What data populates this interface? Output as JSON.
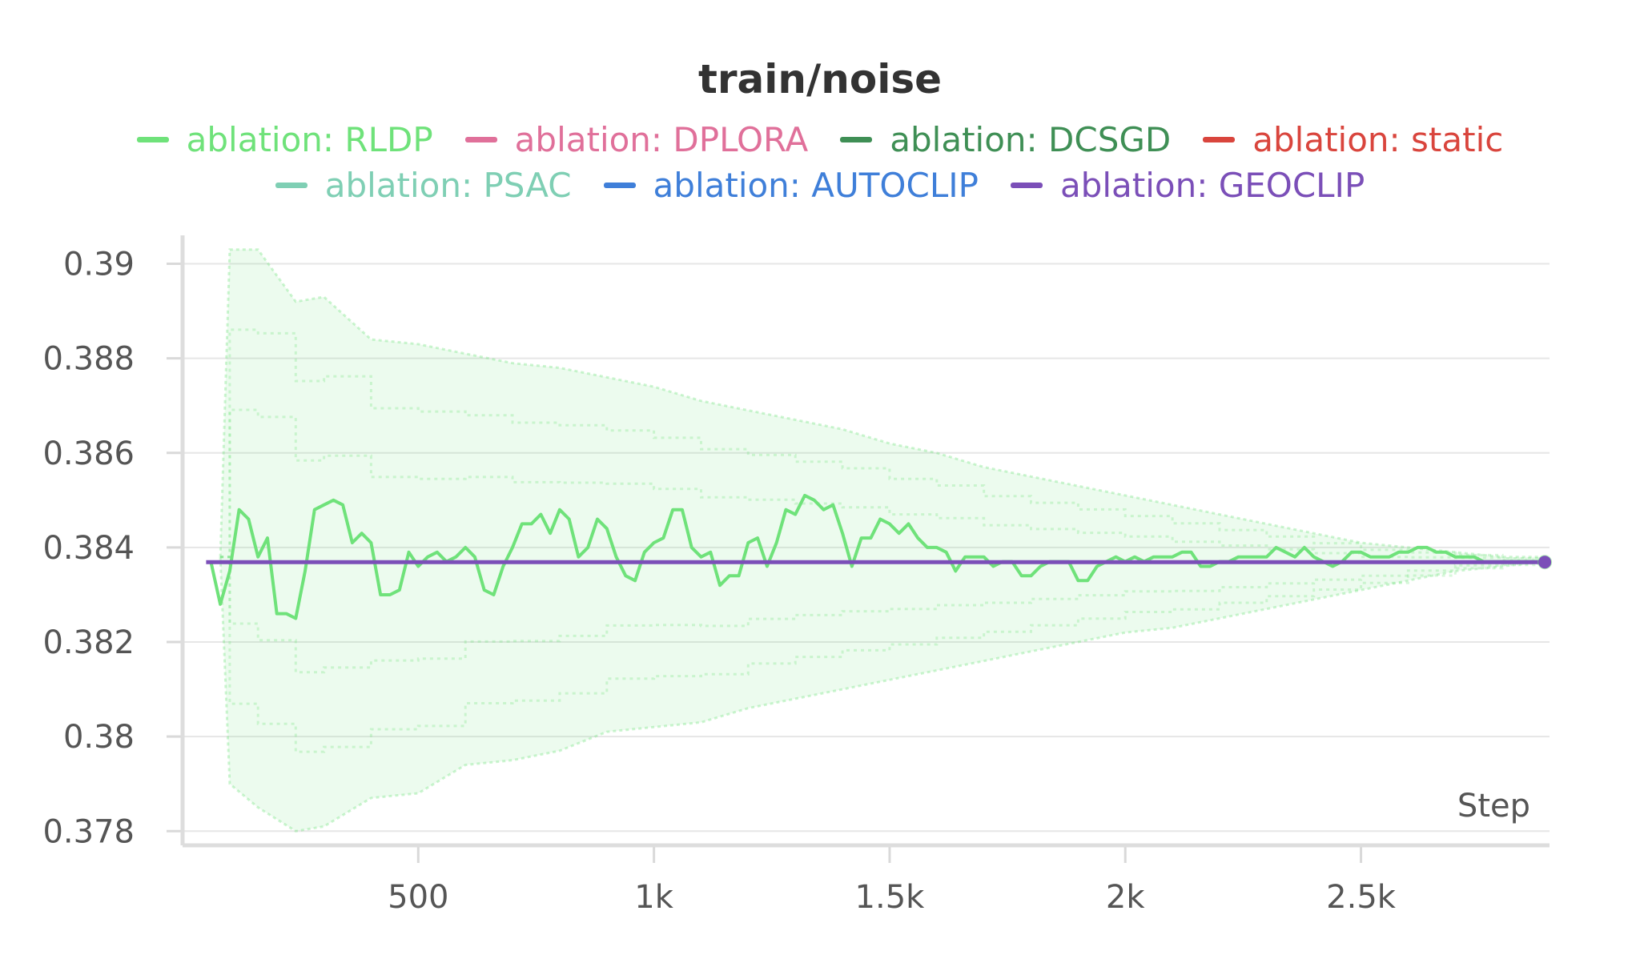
{
  "chart_data": {
    "type": "line",
    "title": "train/noise",
    "xlabel": "Step",
    "ylabel": "",
    "xlim": [
      0,
      2900
    ],
    "ylim": [
      0.3777,
      0.3905
    ],
    "x_ticks": [
      500,
      1000,
      1500,
      2000,
      2500
    ],
    "x_tick_labels": [
      "500",
      "1k",
      "1.5k",
      "2k",
      "2.5k"
    ],
    "y_ticks": [
      0.378,
      0.38,
      0.382,
      0.384,
      0.386,
      0.388,
      0.39
    ],
    "y_tick_labels": [
      "0.378",
      "0.38",
      "0.382",
      "0.384",
      "0.386",
      "0.388",
      "0.39"
    ],
    "grid": true,
    "legend_position": "top",
    "legend": [
      {
        "label": "ablation: RLDP",
        "color": "#6fe27a"
      },
      {
        "label": "ablation: DPLORA",
        "color": "#e0709a"
      },
      {
        "label": "ablation: DCSGD",
        "color": "#3f8f55"
      },
      {
        "label": "ablation: static",
        "color": "#d9453d"
      },
      {
        "label": "ablation: PSAC",
        "color": "#7fcfb4"
      },
      {
        "label": "ablation: AUTOCLIP",
        "color": "#3f7fd9"
      },
      {
        "label": "ablation: GEOCLIP",
        "color": "#7b4fb8"
      }
    ],
    "series": [
      {
        "name": "ablation: RLDP",
        "color": "#6fe27a",
        "x": [
          60,
          80,
          100,
          120,
          140,
          160,
          180,
          200,
          220,
          240,
          260,
          280,
          300,
          320,
          340,
          360,
          380,
          400,
          420,
          440,
          460,
          480,
          500,
          520,
          540,
          560,
          580,
          600,
          620,
          640,
          660,
          680,
          700,
          720,
          740,
          760,
          780,
          800,
          820,
          840,
          860,
          880,
          900,
          920,
          940,
          960,
          980,
          1000,
          1020,
          1040,
          1060,
          1080,
          1100,
          1120,
          1140,
          1160,
          1180,
          1200,
          1220,
          1240,
          1260,
          1280,
          1300,
          1320,
          1340,
          1360,
          1380,
          1400,
          1420,
          1440,
          1460,
          1480,
          1500,
          1520,
          1540,
          1560,
          1580,
          1600,
          1620,
          1640,
          1660,
          1680,
          1700,
          1720,
          1740,
          1760,
          1780,
          1800,
          1820,
          1840,
          1860,
          1880,
          1900,
          1920,
          1940,
          1960,
          1980,
          2000,
          2020,
          2040,
          2060,
          2080,
          2100,
          2120,
          2140,
          2160,
          2180,
          2200,
          2220,
          2240,
          2260,
          2280,
          2300,
          2320,
          2340,
          2360,
          2380,
          2400,
          2420,
          2440,
          2460,
          2480,
          2500,
          2520,
          2540,
          2560,
          2580,
          2600,
          2620,
          2640,
          2660,
          2680,
          2700,
          2720,
          2740,
          2760,
          2780,
          2800,
          2820,
          2840,
          2860,
          2880
        ],
        "values": [
          0.3837,
          0.3828,
          0.3835,
          0.3848,
          0.3846,
          0.3838,
          0.3842,
          0.3826,
          0.3826,
          0.3825,
          0.3835,
          0.3848,
          0.3849,
          0.385,
          0.3849,
          0.3841,
          0.3843,
          0.3841,
          0.383,
          0.383,
          0.3831,
          0.3839,
          0.3836,
          0.3838,
          0.3839,
          0.3837,
          0.3838,
          0.384,
          0.3838,
          0.3831,
          0.383,
          0.3836,
          0.384,
          0.3845,
          0.3845,
          0.3847,
          0.3843,
          0.3848,
          0.3846,
          0.3838,
          0.384,
          0.3846,
          0.3844,
          0.3838,
          0.3834,
          0.3833,
          0.3839,
          0.3841,
          0.3842,
          0.3848,
          0.3848,
          0.384,
          0.3838,
          0.3839,
          0.3832,
          0.3834,
          0.3834,
          0.3841,
          0.3842,
          0.3836,
          0.3841,
          0.3848,
          0.3847,
          0.3851,
          0.385,
          0.3848,
          0.3849,
          0.3843,
          0.3836,
          0.3842,
          0.3842,
          0.3846,
          0.3845,
          0.3843,
          0.3845,
          0.3842,
          0.384,
          0.384,
          0.3839,
          0.3835,
          0.3838,
          0.3838,
          0.3838,
          0.3836,
          0.3837,
          0.3837,
          0.3834,
          0.3834,
          0.3836,
          0.3837,
          0.3837,
          0.3837,
          0.3833,
          0.3833,
          0.3836,
          0.3837,
          0.3838,
          0.3837,
          0.3838,
          0.3837,
          0.3838,
          0.3838,
          0.3838,
          0.3839,
          0.3839,
          0.3836,
          0.3836,
          0.3837,
          0.3837,
          0.3838,
          0.3838,
          0.3838,
          0.3838,
          0.384,
          0.3839,
          0.3838,
          0.384,
          0.3838,
          0.3837,
          0.3836,
          0.3837,
          0.3839,
          0.3839,
          0.3838,
          0.3838,
          0.3838,
          0.3839,
          0.3839,
          0.384,
          0.384,
          0.3839,
          0.3839,
          0.3838,
          0.3838,
          0.3838,
          0.3837,
          0.3837,
          0.3837,
          0.3837,
          0.3837,
          0.3837,
          0.3837
        ]
      },
      {
        "name": "ablation: GEOCLIP",
        "color": "#7b4fb8",
        "x": [
          50,
          2890
        ],
        "values": [
          0.38369,
          0.38369
        ]
      }
    ],
    "rldp_band_upper": {
      "x": [
        80,
        100,
        160,
        240,
        300,
        400,
        500,
        600,
        700,
        800,
        900,
        1000,
        1100,
        1200,
        1300,
        1400,
        1500,
        1600,
        1700,
        1800,
        1900,
        2000,
        2100,
        2200,
        2300,
        2400,
        2500,
        2600,
        2700,
        2800,
        2890
      ],
      "values": [
        0.3838,
        0.3903,
        0.3903,
        0.3892,
        0.3893,
        0.3884,
        0.3883,
        0.3881,
        0.3879,
        0.3878,
        0.3876,
        0.3874,
        0.3871,
        0.3869,
        0.3867,
        0.3865,
        0.3862,
        0.386,
        0.3857,
        0.3855,
        0.3853,
        0.3851,
        0.3849,
        0.3847,
        0.3845,
        0.3843,
        0.3841,
        0.384,
        0.3839,
        0.3838,
        0.3838
      ]
    },
    "rldp_band_lower": {
      "x": [
        80,
        100,
        160,
        240,
        300,
        400,
        500,
        600,
        700,
        800,
        900,
        1000,
        1100,
        1200,
        1300,
        1400,
        1500,
        1600,
        1700,
        1800,
        1900,
        2000,
        2100,
        2200,
        2300,
        2400,
        2500,
        2600,
        2700,
        2800,
        2890
      ],
      "values": [
        0.3838,
        0.379,
        0.3785,
        0.378,
        0.3781,
        0.3787,
        0.3788,
        0.3794,
        0.3795,
        0.3797,
        0.3801,
        0.3802,
        0.3803,
        0.3806,
        0.3808,
        0.381,
        0.3812,
        0.3814,
        0.3816,
        0.3818,
        0.382,
        0.3822,
        0.3823,
        0.3825,
        0.3827,
        0.3829,
        0.3831,
        0.3833,
        0.3835,
        0.3836,
        0.3837
      ]
    }
  }
}
